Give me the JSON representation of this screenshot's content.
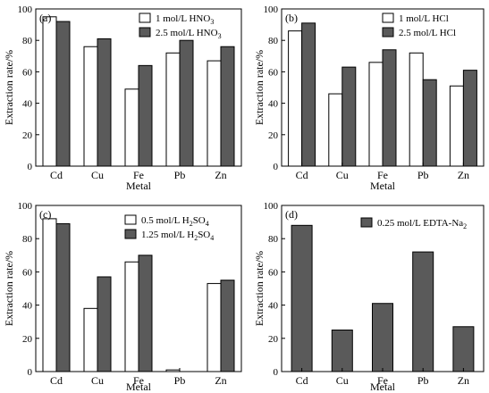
{
  "colors": {
    "series1": "#ffffff",
    "series2": "#5a5a5a",
    "axis": "#000000"
  },
  "chart_data": [
    {
      "type": "bar",
      "panel": "(a)",
      "categories": [
        "Cd",
        "Cu",
        "Fe",
        "Pb",
        "Zn"
      ],
      "series": [
        {
          "name_html": "1 mol/L HNO<tspan dy='3' font-size='8'>3</tspan>",
          "legend_plain": "1 mol/L HNO3",
          "values": [
            95,
            76,
            49,
            72,
            67
          ]
        },
        {
          "name_html": "2.5 mol/L HNO<tspan dy='3' font-size='8'>3</tspan>",
          "legend_plain": "2.5 mol/L HNO3",
          "values": [
            92,
            81,
            64,
            80,
            76
          ]
        }
      ],
      "xlabel": "Metal",
      "ylabel": "Extraction rate/%",
      "ylim": [
        0,
        100
      ],
      "yticks": [
        0,
        20,
        40,
        60,
        80,
        100
      ],
      "legend_position": "top-right"
    },
    {
      "type": "bar",
      "panel": "(b)",
      "categories": [
        "Cd",
        "Cu",
        "Fe",
        "Pb",
        "Zn"
      ],
      "series": [
        {
          "name_html": "1 mol/L HCl",
          "legend_plain": "1 mol/L HCl",
          "values": [
            86,
            46,
            66,
            72,
            51
          ]
        },
        {
          "name_html": "2.5 mol/L HCl",
          "legend_plain": "2.5 mol/L HCl",
          "values": [
            91,
            63,
            74,
            55,
            61
          ]
        }
      ],
      "xlabel": "Metal",
      "ylabel": "Extraction rate/%",
      "ylim": [
        0,
        100
      ],
      "yticks": [
        0,
        20,
        40,
        60,
        80,
        100
      ],
      "legend_position": "top-right"
    },
    {
      "type": "bar",
      "panel": "(c)",
      "categories": [
        "Cd",
        "Cu",
        "Fe",
        "Pb",
        "Zn"
      ],
      "series": [
        {
          "name_html": "0.5 mol/L H<tspan dy='3' font-size='8'>2</tspan><tspan dy='-3'>SO</tspan><tspan dy='3' font-size='8'>4</tspan>",
          "legend_plain": "0.5 mol/L H2SO4",
          "values": [
            92,
            38,
            66,
            1,
            53
          ]
        },
        {
          "name_html": "1.25 mol/L H<tspan dy='3' font-size='8'>2</tspan><tspan dy='-3'>SO</tspan><tspan dy='3' font-size='8'>4</tspan>",
          "legend_plain": "1.25 mol/L H2SO4",
          "values": [
            89,
            57,
            70,
            0,
            55
          ]
        }
      ],
      "xlabel": "Metal",
      "ylabel": "Extraction rate/%",
      "ylim": [
        0,
        100
      ],
      "yticks": [
        0,
        20,
        40,
        60,
        80,
        100
      ],
      "legend_position": "top-right"
    },
    {
      "type": "bar",
      "panel": "(d)",
      "categories": [
        "Cd",
        "Cu",
        "Fe",
        "Pb",
        "Zn"
      ],
      "series": [
        {
          "name_html": "0.25 mol/L EDTA-Na<tspan dy='3' font-size='8'>2</tspan>",
          "legend_plain": "0.25 mol/L EDTA-Na2",
          "values": [
            88,
            25,
            41,
            72,
            27
          ]
        }
      ],
      "xlabel": "Metal",
      "ylabel": "Extraction rate/%",
      "ylim": [
        0,
        100
      ],
      "yticks": [
        0,
        20,
        40,
        60,
        80,
        100
      ],
      "legend_position": "top-right"
    }
  ]
}
